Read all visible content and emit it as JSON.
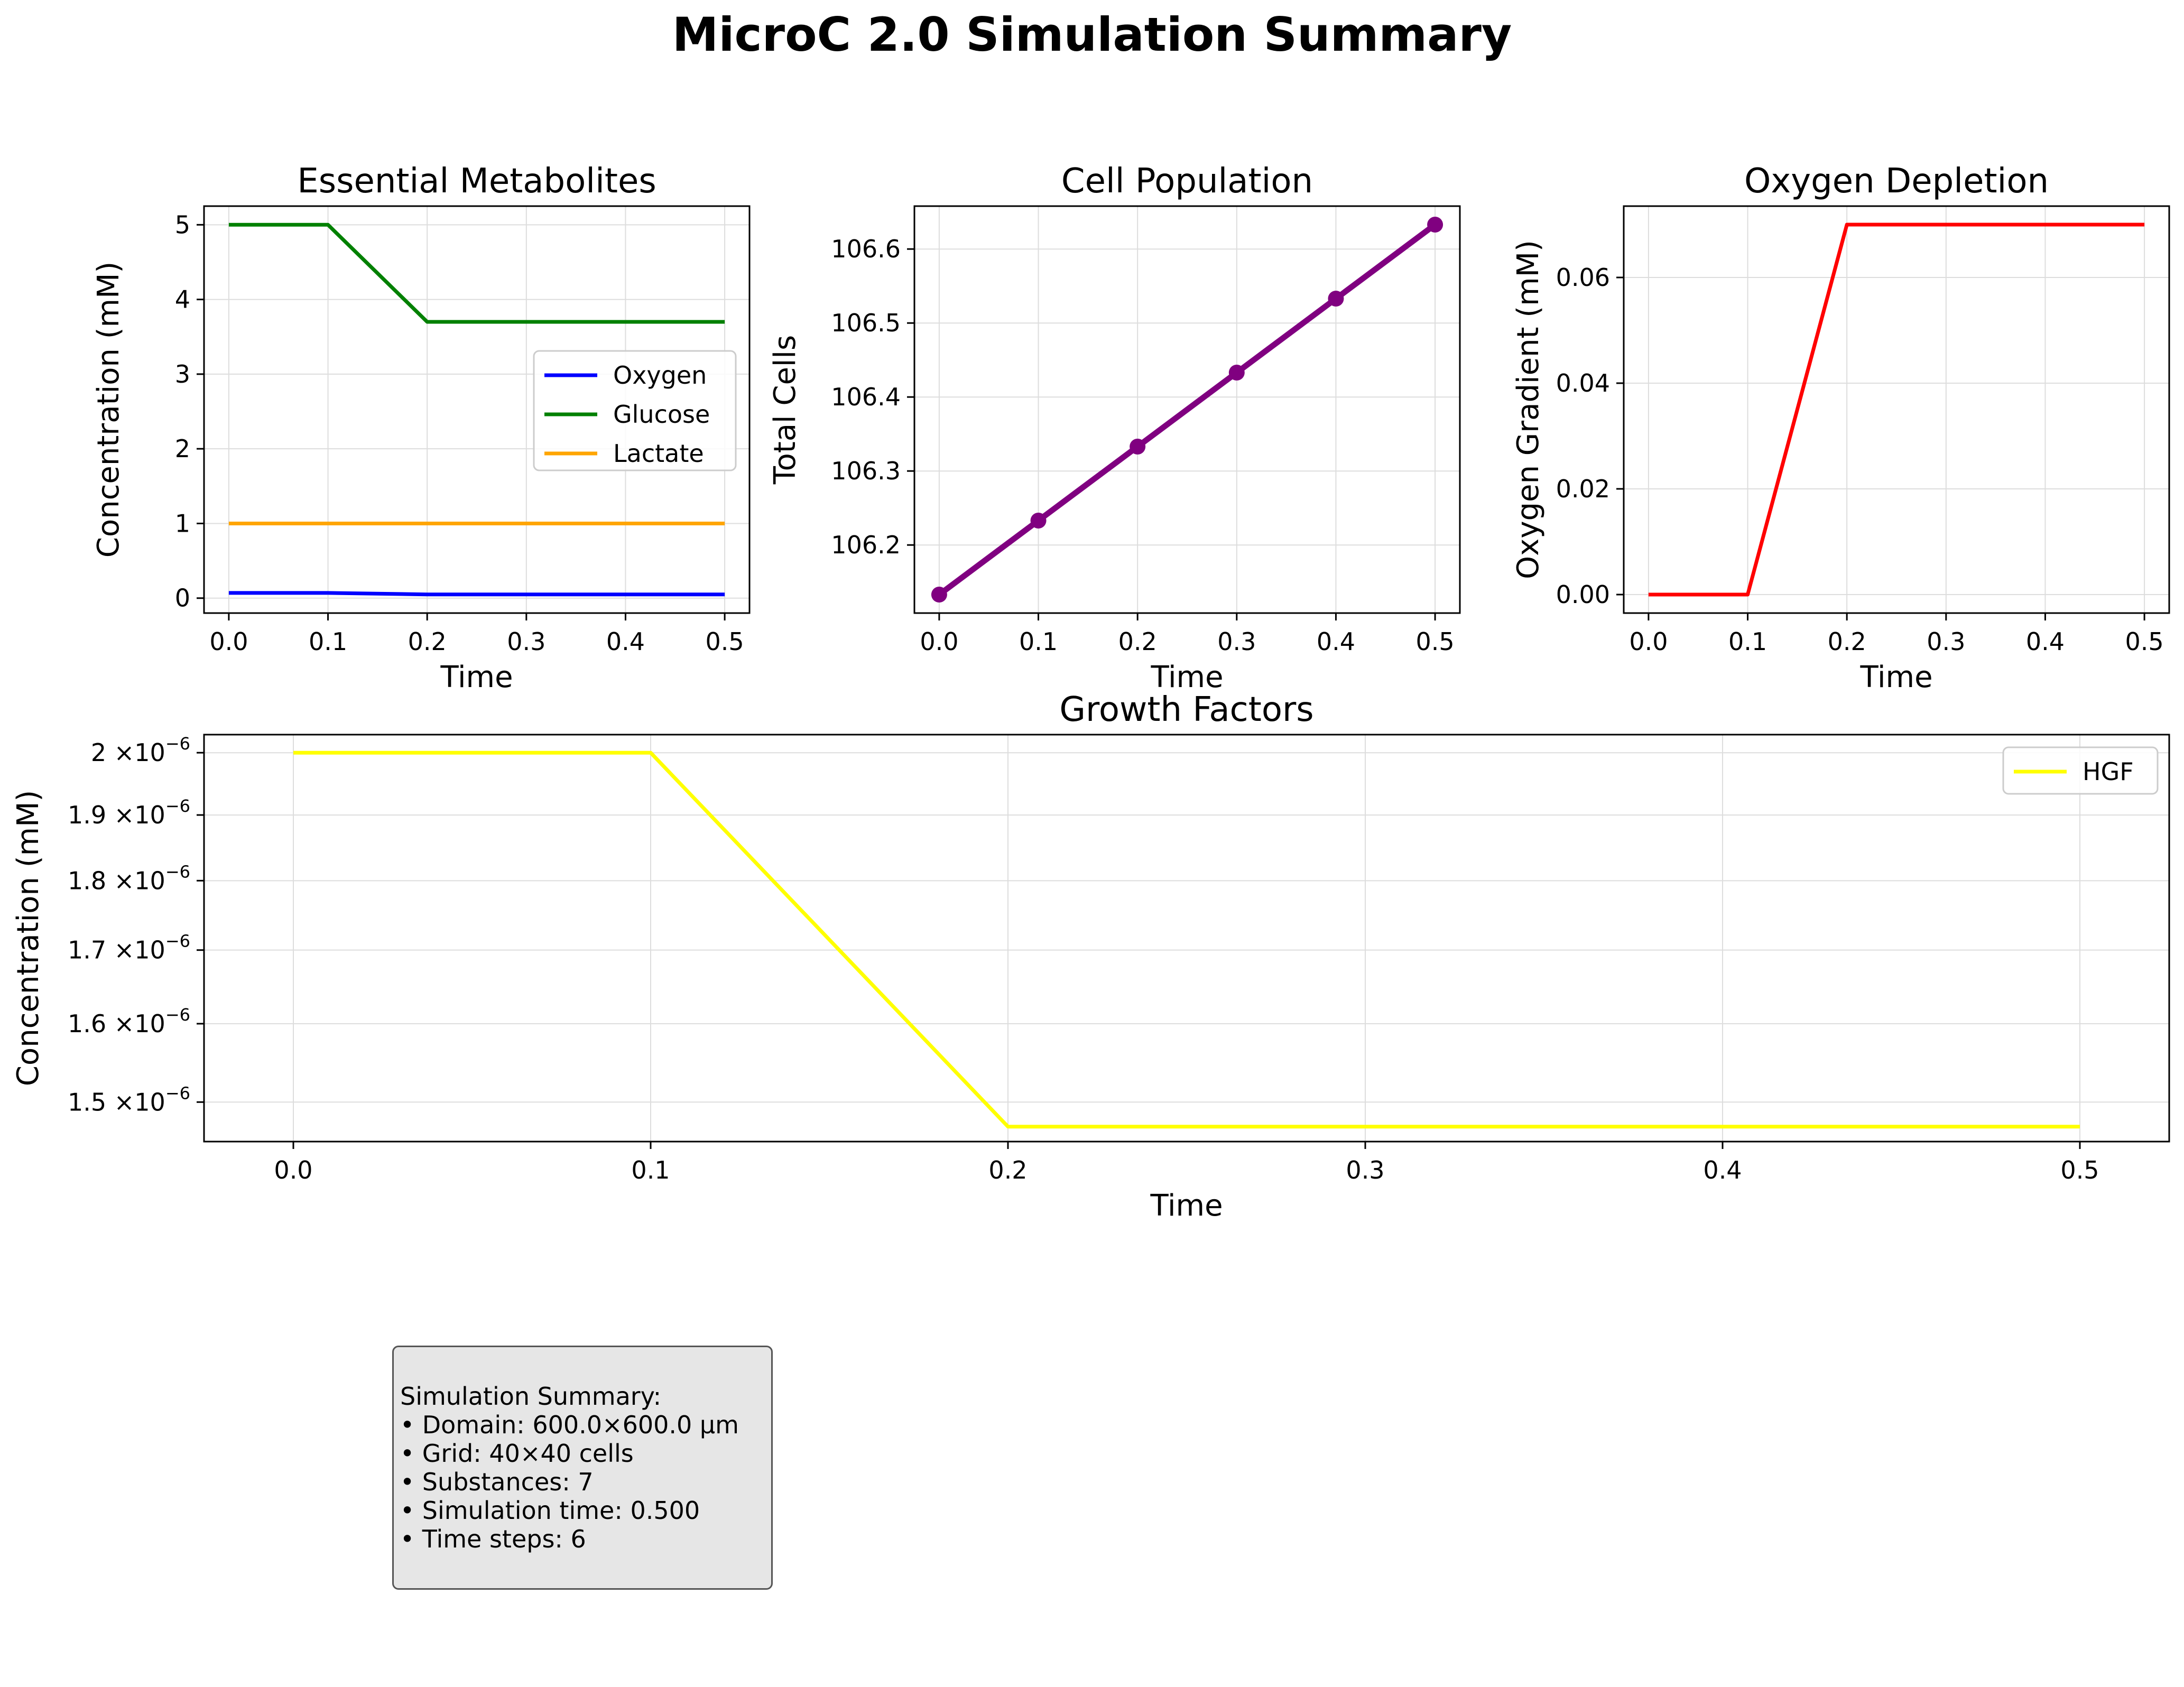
{
  "figure": {
    "title": "MicroC 2.0 Simulation Summary"
  },
  "colors": {
    "oxygen": "#0000ff",
    "glucose": "#008000",
    "lactate": "#ffa500",
    "cells": "#800080",
    "gradient": "#ff0000",
    "hgf": "#ffff00",
    "grid": "#dddddd"
  },
  "chart_data": [
    {
      "type": "line",
      "title": "Essential Metabolites",
      "xlabel": "Time",
      "ylabel": "Concentration (mM)",
      "x": [
        0.0,
        0.1,
        0.2,
        0.3,
        0.4,
        0.5
      ],
      "xlim": [
        -0.025,
        0.525
      ],
      "ylim": [
        -0.2,
        5.25
      ],
      "xticks": [
        0.0,
        0.1,
        0.2,
        0.3,
        0.4,
        0.5
      ],
      "xtick_labels": [
        "0.0",
        "0.1",
        "0.2",
        "0.3",
        "0.4",
        "0.5"
      ],
      "yticks": [
        0,
        1,
        2,
        3,
        4,
        5
      ],
      "ytick_labels": [
        "0",
        "1",
        "2",
        "3",
        "4",
        "5"
      ],
      "grid": true,
      "legend": "center-right",
      "series": [
        {
          "name": "Oxygen",
          "color": "#0000ff",
          "values": [
            0.07,
            0.07,
            0.05,
            0.05,
            0.05,
            0.05
          ]
        },
        {
          "name": "Glucose",
          "color": "#008000",
          "values": [
            5.0,
            5.0,
            3.7,
            3.7,
            3.7,
            3.7
          ]
        },
        {
          "name": "Lactate",
          "color": "#ffa500",
          "values": [
            1.0,
            1.0,
            1.0,
            1.0,
            1.0,
            1.0
          ]
        }
      ]
    },
    {
      "type": "line",
      "title": "Cell Population",
      "xlabel": "Time",
      "ylabel": "Total Cells",
      "x": [
        0.0,
        0.1,
        0.2,
        0.3,
        0.4,
        0.5
      ],
      "xlim": [
        -0.025,
        0.525
      ],
      "ylim": [
        106.108,
        106.658
      ],
      "xticks": [
        0.0,
        0.1,
        0.2,
        0.3,
        0.4,
        0.5
      ],
      "xtick_labels": [
        "0.0",
        "0.1",
        "0.2",
        "0.3",
        "0.4",
        "0.5"
      ],
      "yticks": [
        106.2,
        106.3,
        106.4,
        106.5,
        106.6
      ],
      "ytick_labels": [
        "106.2",
        "106.3",
        "106.4",
        "106.5",
        "106.6"
      ],
      "grid": true,
      "markers": true,
      "series": [
        {
          "color": "#800080",
          "values": [
            106.133,
            106.233,
            106.333,
            106.433,
            106.533,
            106.633
          ]
        }
      ]
    },
    {
      "type": "line",
      "title": "Oxygen Depletion",
      "xlabel": "Time",
      "ylabel": "Oxygen Gradient (mM)",
      "x": [
        0.0,
        0.1,
        0.2,
        0.3,
        0.4,
        0.5
      ],
      "xlim": [
        -0.025,
        0.525
      ],
      "ylim": [
        -0.0035,
        0.0735
      ],
      "xticks": [
        0.0,
        0.1,
        0.2,
        0.3,
        0.4,
        0.5
      ],
      "xtick_labels": [
        "0.0",
        "0.1",
        "0.2",
        "0.3",
        "0.4",
        "0.5"
      ],
      "yticks": [
        0.0,
        0.02,
        0.04,
        0.06
      ],
      "ytick_labels": [
        "0.00",
        "0.02",
        "0.04",
        "0.06"
      ],
      "grid": true,
      "series": [
        {
          "color": "#ff0000",
          "values": [
            0.0,
            0.0,
            0.07,
            0.07,
            0.07,
            0.07
          ]
        }
      ]
    },
    {
      "type": "line",
      "title": "Growth Factors",
      "xlabel": "Time",
      "ylabel": "Concentration (mM)",
      "log_y": true,
      "x": [
        0.0,
        0.1,
        0.2,
        0.3,
        0.4,
        0.5
      ],
      "xlim": [
        -0.025,
        0.525
      ],
      "ylim": [
        1.452e-06,
        2.03e-06
      ],
      "xticks": [
        0.0,
        0.1,
        0.2,
        0.3,
        0.4,
        0.5
      ],
      "xtick_labels": [
        "0.0",
        "0.1",
        "0.2",
        "0.3",
        "0.4",
        "0.5"
      ],
      "yticks": [
        1.5e-06,
        1.6e-06,
        1.7e-06,
        1.8e-06,
        1.9e-06,
        2e-06
      ],
      "ytick_labels": [
        "1.5",
        "1.6",
        "1.7",
        "1.8",
        "1.9",
        "2"
      ],
      "ytick_suffix": "×10",
      "ytick_exponent": "−6",
      "grid": true,
      "legend": "top-right",
      "series": [
        {
          "name": "HGF",
          "color": "#ffff00",
          "values": [
            2e-06,
            2e-06,
            1.47e-06,
            1.47e-06,
            1.47e-06,
            1.47e-06
          ]
        }
      ]
    }
  ],
  "summary": {
    "heading": "Simulation Summary:",
    "lines": [
      "• Domain: 600.0×600.0 μm",
      "• Grid: 40×40 cells",
      "• Substances: 7",
      "• Simulation time: 0.500",
      "• Time steps: 6"
    ]
  }
}
